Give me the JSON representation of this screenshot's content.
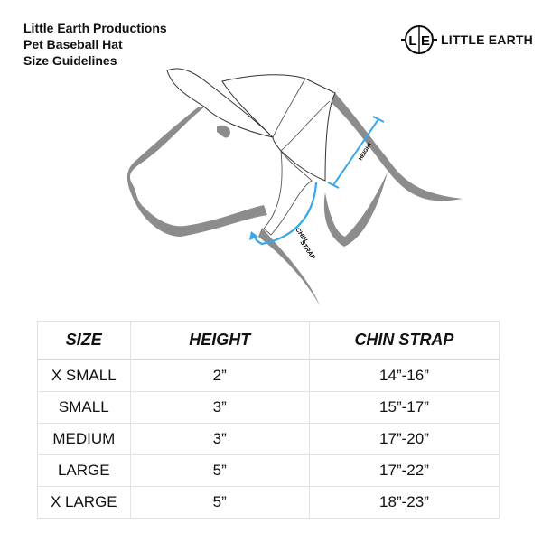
{
  "header": {
    "title_lines": [
      "Little Earth Productions",
      "Pet Baseball Hat",
      "Size Guidelines"
    ]
  },
  "logo": {
    "mark": "L|E",
    "text": "LITTLE EARTH"
  },
  "illustration": {
    "height_label": "HEIGHT",
    "chin_strap_label_1": "CHIN",
    "chin_strap_label_2": "STRAP",
    "accent_color": "#3aa6ea",
    "outline_color": "#8a8a8a"
  },
  "table": {
    "headers": [
      "SIZE",
      "HEIGHT",
      "CHIN STRAP"
    ],
    "rows": [
      [
        "X SMALL",
        "2”",
        "14”-16”"
      ],
      [
        "SMALL",
        "3”",
        "15”-17”"
      ],
      [
        "MEDIUM",
        "3”",
        "17”-20”"
      ],
      [
        "LARGE",
        "5”",
        "17”-22”"
      ],
      [
        "X LARGE",
        "5”",
        "18”-23”"
      ]
    ]
  }
}
